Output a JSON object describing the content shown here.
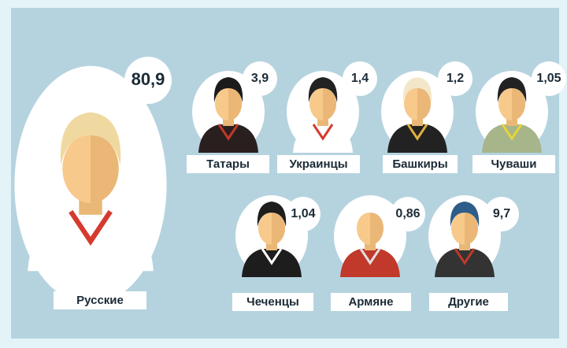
{
  "groups": [
    {
      "name": "Русские",
      "value": "80,9"
    },
    {
      "name": "Татары",
      "value": "3,9"
    },
    {
      "name": "Украинцы",
      "value": "1,4"
    },
    {
      "name": "Башкиры",
      "value": "1,2"
    },
    {
      "name": "Чуваши",
      "value": "1,05"
    },
    {
      "name": "Чеченцы",
      "value": "1,04"
    },
    {
      "name": "Армяне",
      "value": "0,86"
    },
    {
      "name": "Другие",
      "value": "9,7"
    }
  ]
}
